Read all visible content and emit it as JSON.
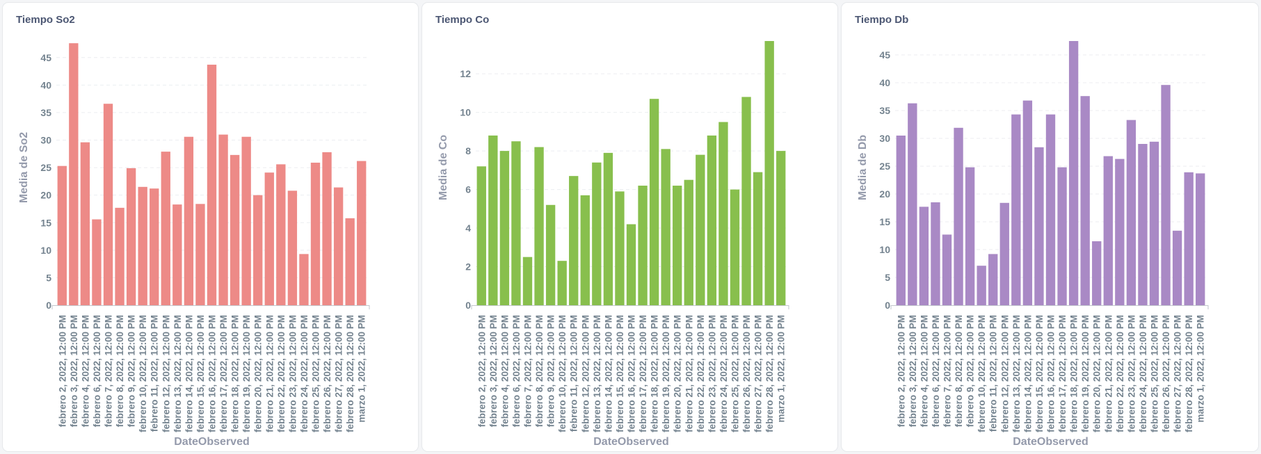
{
  "chart_data": [
    {
      "type": "bar",
      "title": "Tiempo So2",
      "xlabel": "DateObserved",
      "ylabel": "Media de So2",
      "color": "#ed8a87",
      "ylim": [
        0,
        48
      ],
      "yticks": [
        0,
        5,
        10,
        15,
        20,
        25,
        30,
        35,
        40,
        45
      ],
      "categories": [
        "febrero 2, 2022, 12:00 PM",
        "febrero 3, 2022, 12:00 PM",
        "febrero 4, 2022, 12:00 PM",
        "febrero 6, 2022, 12:00 PM",
        "febrero 7, 2022, 12:00 PM",
        "febrero 8, 2022, 12:00 PM",
        "febrero 9, 2022, 12:00 PM",
        "febrero 10, 2022, 12:00 PM",
        "febrero 11, 2022, 12:00 PM",
        "febrero 12, 2022, 12:00 PM",
        "febrero 13, 2022, 12:00 PM",
        "febrero 14, 2022, 12:00 PM",
        "febrero 15, 2022, 12:00 PM",
        "febrero 16, 2022, 12:00 PM",
        "febrero 17, 2022, 12:00 PM",
        "febrero 18, 2022, 12:00 PM",
        "febrero 19, 2022, 12:00 PM",
        "febrero 20, 2022, 12:00 PM",
        "febrero 21, 2022, 12:00 PM",
        "febrero 22, 2022, 12:00 PM",
        "febrero 23, 2022, 12:00 PM",
        "febrero 24, 2022, 12:00 PM",
        "febrero 25, 2022, 12:00 PM",
        "febrero 26, 2022, 12:00 PM",
        "febrero 27, 2022, 12:00 PM",
        "febrero 28, 2022, 12:00 PM",
        "marzo 1, 2022, 12:00 PM"
      ],
      "values": [
        25.3,
        47.6,
        29.6,
        15.6,
        36.6,
        17.7,
        24.9,
        21.5,
        21.2,
        27.9,
        18.3,
        30.6,
        18.4,
        43.7,
        31.0,
        27.3,
        30.6,
        20.0,
        24.1,
        25.6,
        20.8,
        9.3,
        25.9,
        27.8,
        21.4,
        15.8,
        26.2
      ]
    },
    {
      "type": "bar",
      "title": "Tiempo Co",
      "xlabel": "DateObserved",
      "ylabel": "Media de Co",
      "color": "#88bf4d",
      "ylim": [
        0,
        13.7
      ],
      "yticks": [
        0,
        2,
        4,
        6,
        8,
        10,
        12
      ],
      "categories": [
        "febrero 2, 2022, 12:00 PM",
        "febrero 3, 2022, 12:00 PM",
        "febrero 4, 2022, 12:00 PM",
        "febrero 6, 2022, 12:00 PM",
        "febrero 7, 2022, 12:00 PM",
        "febrero 8, 2022, 12:00 PM",
        "febrero 9, 2022, 12:00 PM",
        "febrero 10, 2022, 12:00 PM",
        "febrero 11, 2022, 12:00 PM",
        "febrero 12, 2022, 12:00 PM",
        "febrero 13, 2022, 12:00 PM",
        "febrero 14, 2022, 12:00 PM",
        "febrero 15, 2022, 12:00 PM",
        "febrero 16, 2022, 12:00 PM",
        "febrero 17, 2022, 12:00 PM",
        "febrero 18, 2022, 12:00 PM",
        "febrero 19, 2022, 12:00 PM",
        "febrero 20, 2022, 12:00 PM",
        "febrero 21, 2022, 12:00 PM",
        "febrero 22, 2022, 12:00 PM",
        "febrero 23, 2022, 12:00 PM",
        "febrero 24, 2022, 12:00 PM",
        "febrero 25, 2022, 12:00 PM",
        "febrero 26, 2022, 12:00 PM",
        "febrero 27, 2022, 12:00 PM",
        "febrero 28, 2022, 12:00 PM",
        "marzo 1, 2022, 12:00 PM"
      ],
      "values": [
        7.2,
        8.8,
        8.0,
        8.5,
        2.5,
        8.2,
        5.2,
        2.3,
        6.7,
        5.7,
        7.4,
        7.9,
        5.9,
        4.2,
        6.2,
        10.7,
        8.1,
        6.2,
        6.5,
        7.8,
        8.8,
        9.5,
        6.0,
        10.8,
        6.9,
        13.7,
        8.0
      ]
    },
    {
      "type": "bar",
      "title": "Tiempo Db",
      "xlabel": "DateObserved",
      "ylabel": "Media de Db",
      "color": "#a989c5",
      "ylim": [
        0,
        47.5
      ],
      "yticks": [
        0,
        5,
        10,
        15,
        20,
        25,
        30,
        35,
        40,
        45
      ],
      "categories": [
        "febrero 2, 2022, 12:00 PM",
        "febrero 3, 2022, 12:00 PM",
        "febrero 4, 2022, 12:00 PM",
        "febrero 6, 2022, 12:00 PM",
        "febrero 7, 2022, 12:00 PM",
        "febrero 8, 2022, 12:00 PM",
        "febrero 9, 2022, 12:00 PM",
        "febrero 10, 2022, 12:00 PM",
        "febrero 11, 2022, 12:00 PM",
        "febrero 12, 2022, 12:00 PM",
        "febrero 13, 2022, 12:00 PM",
        "febrero 14, 2022, 12:00 PM",
        "febrero 15, 2022, 12:00 PM",
        "febrero 16, 2022, 12:00 PM",
        "febrero 17, 2022, 12:00 PM",
        "febrero 18, 2022, 12:00 PM",
        "febrero 19, 2022, 12:00 PM",
        "febrero 20, 2022, 12:00 PM",
        "febrero 21, 2022, 12:00 PM",
        "febrero 22, 2022, 12:00 PM",
        "febrero 23, 2022, 12:00 PM",
        "febrero 24, 2022, 12:00 PM",
        "febrero 25, 2022, 12:00 PM",
        "febrero 26, 2022, 12:00 PM",
        "febrero 27, 2022, 12:00 PM",
        "febrero 28, 2022, 12:00 PM",
        "marzo 1, 2022, 12:00 PM"
      ],
      "values": [
        30.5,
        36.3,
        17.7,
        18.5,
        12.7,
        31.9,
        24.8,
        7.1,
        9.2,
        18.4,
        34.3,
        36.8,
        28.4,
        34.3,
        24.8,
        47.5,
        37.6,
        11.5,
        26.8,
        26.3,
        33.3,
        29.0,
        29.4,
        39.6,
        13.4,
        23.9,
        23.7
      ]
    }
  ]
}
